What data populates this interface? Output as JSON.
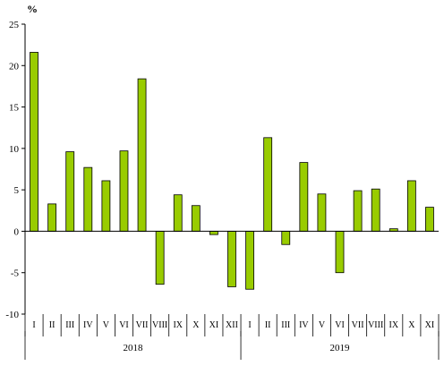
{
  "chart_data": {
    "type": "bar",
    "unit_label": "%",
    "title": "",
    "xlabel": "",
    "ylabel": "",
    "ylim": [
      -10,
      25
    ],
    "y_ticks": [
      -10,
      -5,
      0,
      5,
      10,
      15,
      20,
      25
    ],
    "grid": false,
    "legend": "none",
    "bar_color": "#99cc00",
    "bar_edge_color": "#000000",
    "categories": [
      "I",
      "II",
      "III",
      "IV",
      "V",
      "VI",
      "VII",
      "VIII",
      "IX",
      "X",
      "XI",
      "XII",
      "I",
      "II",
      "III",
      "IV",
      "V",
      "VI",
      "VII",
      "VIII",
      "IX",
      "X",
      "XI"
    ],
    "values": [
      21.6,
      3.3,
      9.6,
      7.7,
      6.1,
      9.7,
      18.4,
      -6.4,
      4.4,
      3.1,
      -0.4,
      -6.7,
      -7.0,
      11.3,
      -1.6,
      8.3,
      4.5,
      -5.0,
      4.9,
      5.1,
      0.3,
      6.1,
      2.9
    ],
    "groups": [
      {
        "label": "2018",
        "count": 12
      },
      {
        "label": "2019",
        "count": 11
      }
    ]
  }
}
